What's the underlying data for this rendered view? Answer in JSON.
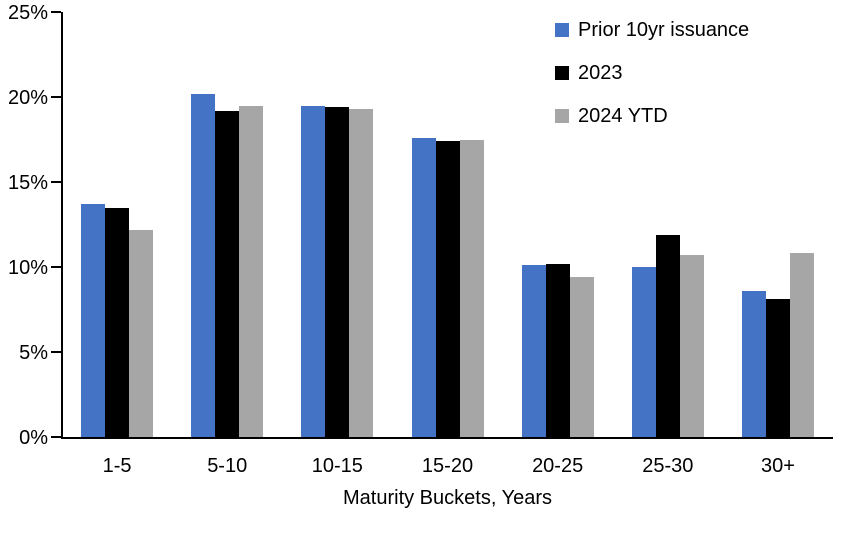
{
  "chart_data": {
    "type": "bar",
    "title": "",
    "xlabel": "Maturity Buckets, Years",
    "ylabel": "",
    "categories": [
      "1-5",
      "5-10",
      "10-15",
      "15-20",
      "20-25",
      "25-30",
      "30+"
    ],
    "series": [
      {
        "name": "Prior 10yr issuance",
        "color": "#4472C4",
        "values": [
          13.7,
          20.2,
          19.5,
          17.6,
          10.1,
          10.0,
          8.6
        ]
      },
      {
        "name": "2023",
        "color": "#000000",
        "values": [
          13.5,
          19.2,
          19.4,
          17.4,
          10.2,
          11.9,
          8.1
        ]
      },
      {
        "name": "2024 YTD",
        "color": "#A6A6A6",
        "values": [
          12.2,
          19.5,
          19.3,
          17.5,
          9.4,
          10.7,
          10.8
        ]
      }
    ],
    "y_ticks": [
      {
        "value": 0,
        "label": "0%"
      },
      {
        "value": 5,
        "label": "5%"
      },
      {
        "value": 10,
        "label": "10%"
      },
      {
        "value": 15,
        "label": "15%"
      },
      {
        "value": 20,
        "label": "20%"
      },
      {
        "value": 25,
        "label": "25%"
      }
    ],
    "ylim": [
      0,
      25
    ],
    "grid": false,
    "legend_position": "top-right"
  }
}
